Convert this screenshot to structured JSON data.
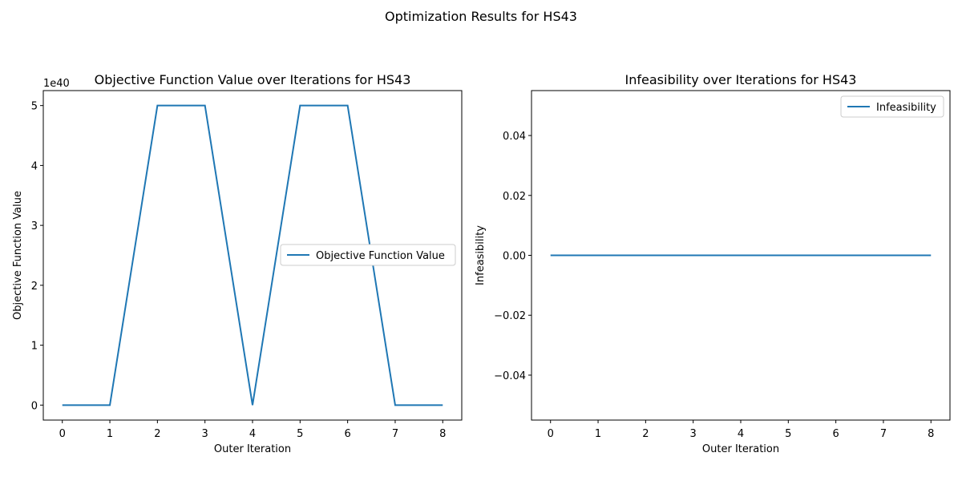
{
  "figure": {
    "suptitle": "Optimization Results for HS43"
  },
  "colors": {
    "series": "#1f77b4"
  },
  "chart_data": [
    {
      "type": "line",
      "title": "Objective Function Value over Iterations for HS43",
      "xlabel": "Outer Iteration",
      "ylabel": "Objective Function Value",
      "y_offset_label": "1e40",
      "legend_position": "center-right",
      "x": [
        0,
        1,
        2,
        3,
        4,
        5,
        6,
        7,
        8
      ],
      "xticks": [
        "0",
        "1",
        "2",
        "3",
        "4",
        "5",
        "6",
        "7",
        "8"
      ],
      "xlim": [
        -0.4,
        8.4
      ],
      "yticks": [
        0,
        1,
        2,
        3,
        4,
        5
      ],
      "ytick_labels": [
        "0",
        "1",
        "2",
        "3",
        "4",
        "5"
      ],
      "ylim": [
        -0.25,
        5.25
      ],
      "series": [
        {
          "name": "Objective Function Value",
          "values": [
            0,
            0,
            5,
            5,
            0,
            5,
            5,
            0,
            0
          ]
        }
      ]
    },
    {
      "type": "line",
      "title": "Infeasibility over Iterations for HS43",
      "xlabel": "Outer Iteration",
      "ylabel": "Infeasibility",
      "legend_position": "top-right",
      "x": [
        0,
        1,
        2,
        3,
        4,
        5,
        6,
        7,
        8
      ],
      "xticks": [
        "0",
        "1",
        "2",
        "3",
        "4",
        "5",
        "6",
        "7",
        "8"
      ],
      "xlim": [
        -0.4,
        8.4
      ],
      "yticks": [
        0.04,
        0.02,
        0.0,
        -0.02,
        -0.04
      ],
      "ytick_labels": [
        "0.04",
        "0.02",
        "0.00",
        "−0.02",
        "−0.04"
      ],
      "ylim": [
        -0.055,
        0.055
      ],
      "series": [
        {
          "name": "Infeasibility",
          "values": [
            0,
            0,
            0,
            0,
            0,
            0,
            0,
            0,
            0
          ]
        }
      ]
    }
  ]
}
